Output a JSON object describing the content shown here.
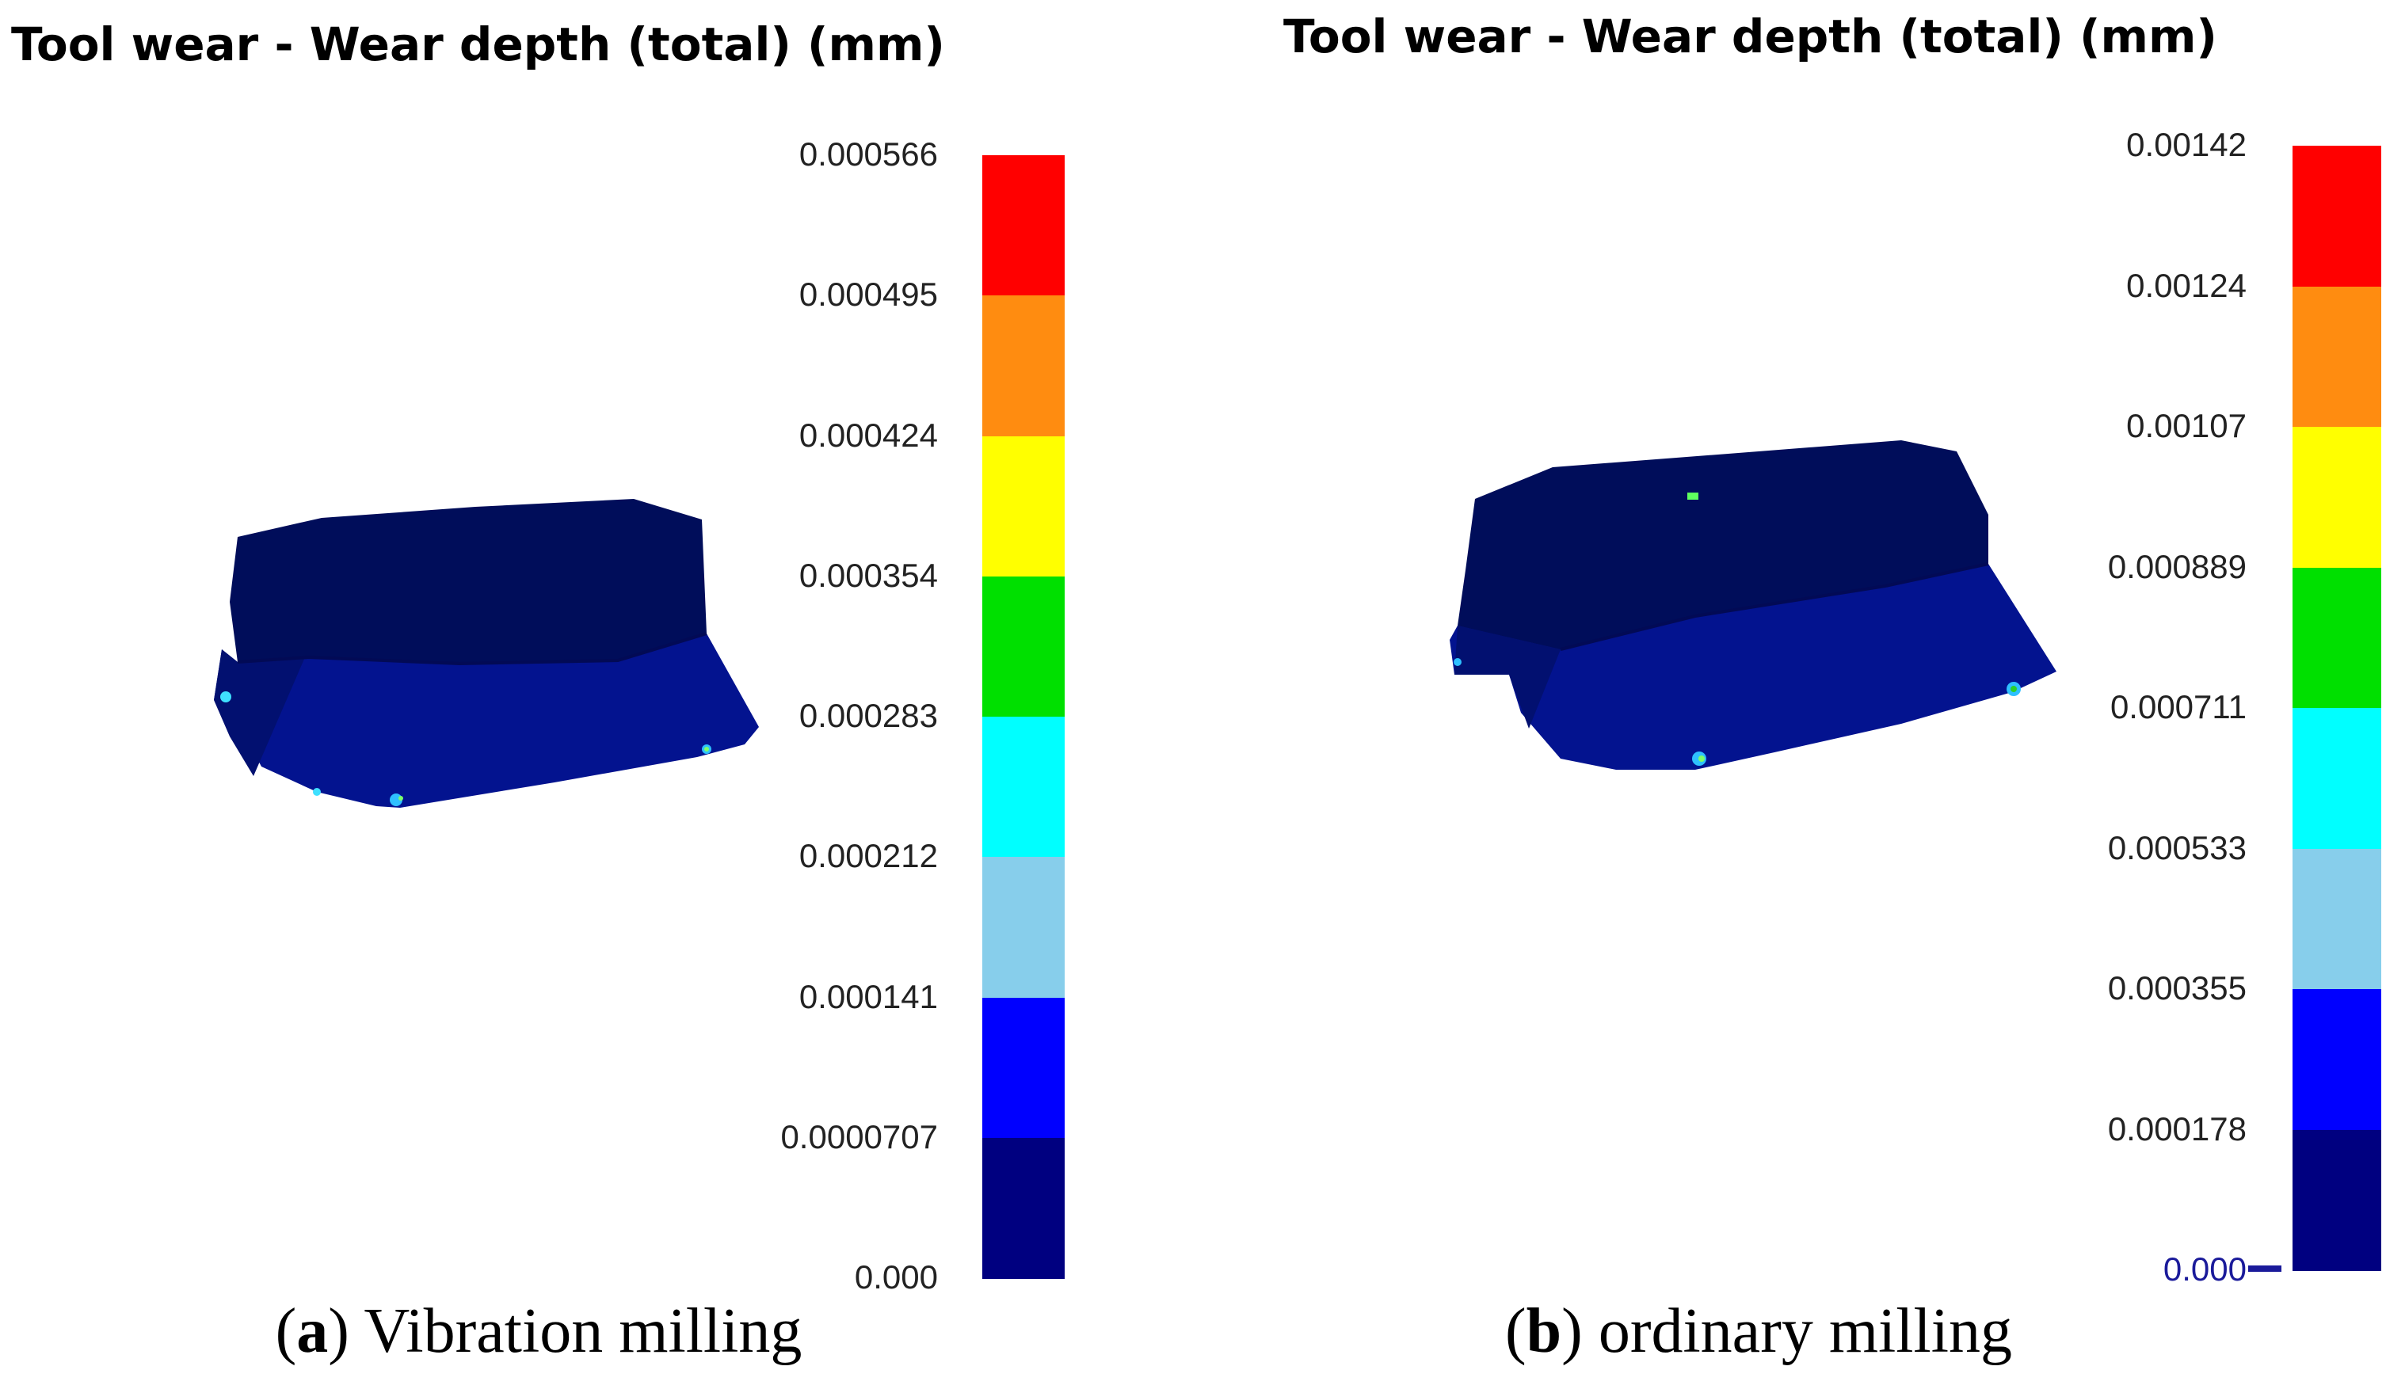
{
  "chart_data": [
    {
      "type": "heatmap",
      "panel_letter": "a",
      "title": "Tool wear - Wear depth (total) (mm)",
      "caption_label": "Vibration milling",
      "colorbar_ticks": [
        "0.000566",
        "0.000495",
        "0.000424",
        "0.000354",
        "0.000283",
        "0.000212",
        "0.000141",
        "0.0000707",
        "0.000"
      ],
      "colorbar_values": [
        0.000566,
        0.000495,
        0.000424,
        0.000354,
        0.000283,
        0.000212,
        0.000141,
        7.07e-05,
        0.0
      ],
      "colors": [
        "#ff0000",
        "#ff8c10",
        "#ffff00",
        "#00e000",
        "#00ffff",
        "#87ceeb",
        "#0000ff",
        "#000080"
      ]
    },
    {
      "type": "heatmap",
      "panel_letter": "b",
      "title": "Tool wear - Wear depth (total) (mm)",
      "caption_label": "ordinary milling",
      "colorbar_ticks": [
        "0.00142",
        "0.00124",
        "0.00107",
        "0.000889",
        "0.000711",
        "0.000533",
        "0.000355",
        "0.000178",
        "0.000"
      ],
      "colorbar_values": [
        0.00142,
        0.00124,
        0.00107,
        0.000889,
        0.000711,
        0.000533,
        0.000355,
        0.000178,
        0.0
      ],
      "colors": [
        "#ff0000",
        "#ff8c10",
        "#ffff00",
        "#00e000",
        "#00ffff",
        "#87ceeb",
        "#0000ff",
        "#000080"
      ]
    }
  ]
}
